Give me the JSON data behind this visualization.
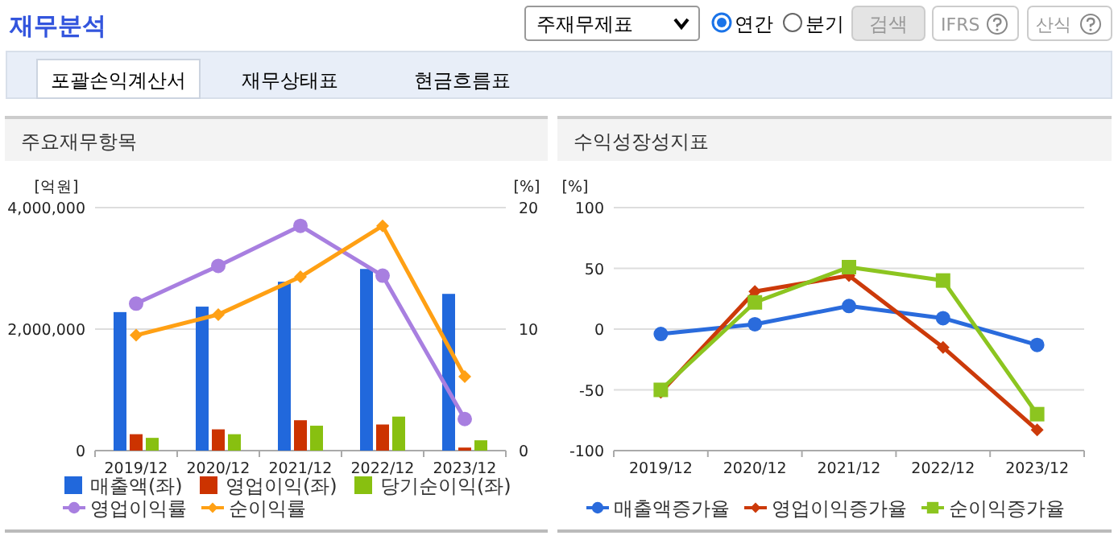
{
  "chart_data": [
    {
      "type": "other",
      "title": "재무분석",
      "annotations": [
        "주재무제표",
        "연간",
        "분기",
        "검색",
        "IFRS",
        "산식",
        "포괄손익계산서",
        "재무상태표",
        "현금흐름표"
      ]
    },
    {
      "type": "bar",
      "title": "주요재무항목",
      "ylabel": "[억원]",
      "y2label": "[%]",
      "categories": [
        "2019/12",
        "2020/12",
        "2021/12",
        "2022/12",
        "2023/12"
      ],
      "series": [
        {
          "name": "매출액(좌)",
          "color": "#2168dc",
          "values": [
            2280000,
            2370000,
            2780000,
            2990000,
            2580000
          ]
        },
        {
          "name": "영업이익(좌)",
          "color": "#cc3300",
          "values": [
            270000,
            350000,
            500000,
            430000,
            50000
          ]
        },
        {
          "name": "당기순이익(좌)",
          "color": "#88c010",
          "values": [
            210000,
            270000,
            410000,
            560000,
            170000
          ]
        },
        {
          "name": "영업이익률",
          "type": "line",
          "axis": "y2",
          "marker": "circle",
          "color": "#a87fe0",
          "values": [
            12.1,
            15.2,
            18.5,
            14.4,
            2.6
          ]
        },
        {
          "name": "순이익률",
          "type": "line",
          "axis": "y2",
          "marker": "diamond",
          "color": "#ffa014",
          "values": [
            9.5,
            11.2,
            14.3,
            18.5,
            6.1
          ]
        }
      ],
      "ylim": [
        0,
        4000000
      ],
      "yticks": [
        {
          "value": 0,
          "label": "0"
        },
        {
          "value": 2000000,
          "label": "2,000,000"
        },
        {
          "value": 4000000,
          "label": "4,000,000"
        }
      ],
      "y2lim": [
        0,
        20
      ],
      "y2ticks": [
        0,
        10,
        20
      ],
      "grid": "y",
      "legend": "bottom"
    },
    {
      "type": "line",
      "title": "수익성장성지표",
      "ylabel": "[%]",
      "categories": [
        "2019/12",
        "2020/12",
        "2021/12",
        "2022/12",
        "2023/12"
      ],
      "series": [
        {
          "name": "매출액증가율",
          "marker": "circle",
          "color": "#2a6bdc",
          "values": [
            -4,
            4,
            19,
            9,
            -13
          ]
        },
        {
          "name": "영업이익증가율",
          "marker": "diamond",
          "color": "#cc3a0a",
          "values": [
            -52,
            31,
            44,
            -15,
            -83
          ]
        },
        {
          "name": "순이익증가율",
          "marker": "square",
          "color": "#8cc520",
          "values": [
            -50,
            22,
            51,
            40,
            -70
          ]
        }
      ],
      "ylim": [
        -100,
        100
      ],
      "yticks": [
        -100,
        -50,
        0,
        50,
        100
      ],
      "grid": "y",
      "legend": "bottom"
    }
  ]
}
